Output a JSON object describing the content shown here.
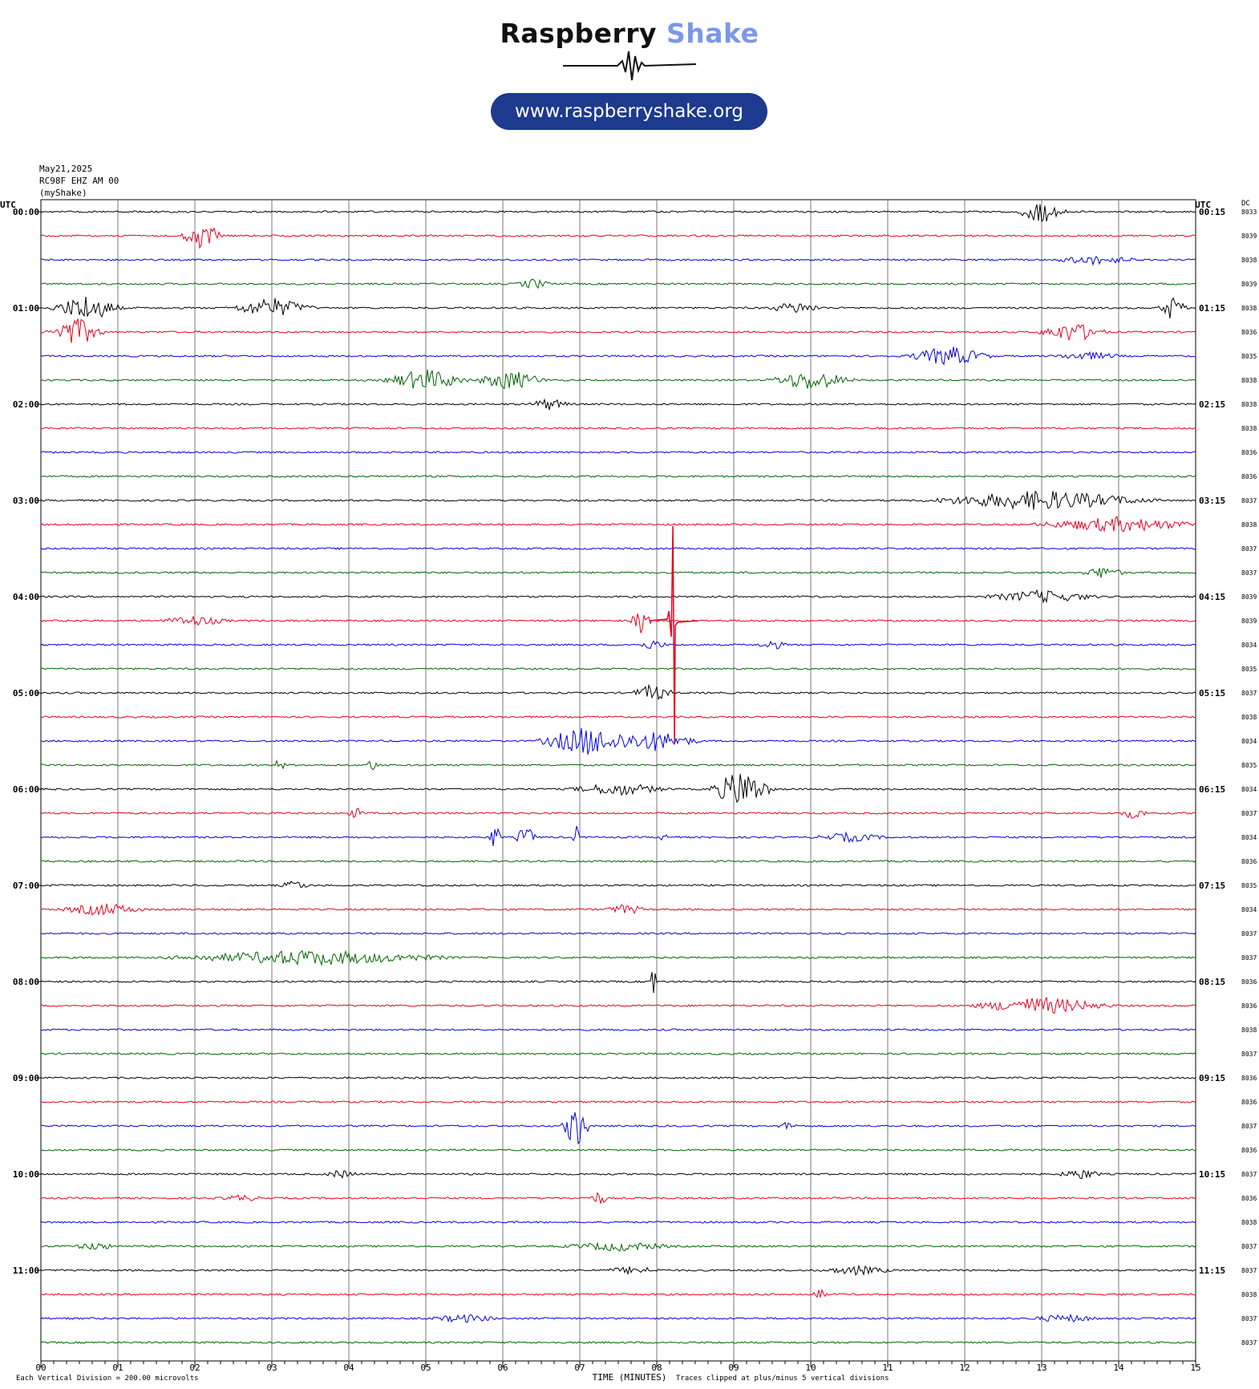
{
  "branding": {
    "name_part1": "Raspberry",
    "name_part2": "Shake",
    "url": "www.raspberryshake.org",
    "accent_blue": "#7b97e8",
    "pill_color": "#1d3a8f"
  },
  "header": {
    "date": "May21,2025",
    "station": "RC98F EHZ AM 00",
    "source": "(myShake)"
  },
  "axis": {
    "left_title": "UTC",
    "right_title": "UTC",
    "dc_title": "DC",
    "xlabel": "TIME (MINUTES)",
    "x_ticks": [
      "00",
      "01",
      "02",
      "03",
      "04",
      "05",
      "06",
      "07",
      "08",
      "09",
      "10",
      "11",
      "12",
      "13",
      "14",
      "15"
    ],
    "scale_note": "Each Vertical Division =  200.00 microvolts",
    "clip_note": "Traces clipped at plus/minus 5 vertical divisions"
  },
  "chart_data": {
    "type": "line",
    "title": "",
    "xlabel": "TIME (MINUTES)",
    "ylabel": "",
    "xlim": [
      0,
      15
    ],
    "trace_minutes": 15,
    "colors": [
      "#000000",
      "#e8001c",
      "#0000e0",
      "#006400"
    ],
    "left_hour_labels": [
      "00:00",
      "01:00",
      "02:00",
      "03:00",
      "04:00",
      "05:00",
      "06:00",
      "07:00",
      "08:00",
      "09:00",
      "10:00",
      "11:00"
    ],
    "right_hour_labels": [
      "00:15",
      "01:15",
      "02:15",
      "03:15",
      "04:15",
      "05:15",
      "06:15",
      "07:15",
      "08:15",
      "09:15",
      "10:15",
      "11:15"
    ],
    "dc_offsets": [
      "8033",
      "8039",
      "8038",
      "8039",
      "8038",
      "8036",
      "8035",
      "8038",
      "8038",
      "8038",
      "8036",
      "8036",
      "8037",
      "8038",
      "8037",
      "8037",
      "8039",
      "8039",
      "8034",
      "8035",
      "8037",
      "8038",
      "8034",
      "8035",
      "8034",
      "8037",
      "8034",
      "8036",
      "8035",
      "8034",
      "8037",
      "8037",
      "8036",
      "8036",
      "8038",
      "8037",
      "8036",
      "8036",
      "8037",
      "8036",
      "8037",
      "8036",
      "8038",
      "8037",
      "8037",
      "8038",
      "8037",
      "8037"
    ],
    "events": [
      {
        "trace": 0,
        "minute": 13.0,
        "amp": 0.9,
        "dur": 0.35
      },
      {
        "trace": 1,
        "minute": 2.1,
        "amp": 1.1,
        "dur": 0.3
      },
      {
        "trace": 2,
        "minute": 13.7,
        "amp": 0.35,
        "dur": 0.6
      },
      {
        "trace": 3,
        "minute": 6.4,
        "amp": 0.4,
        "dur": 0.25
      },
      {
        "trace": 4,
        "minute": 0.6,
        "amp": 1.1,
        "dur": 0.5
      },
      {
        "trace": 4,
        "minute": 3.0,
        "amp": 0.8,
        "dur": 0.6
      },
      {
        "trace": 4,
        "minute": 9.8,
        "amp": 0.45,
        "dur": 0.4
      },
      {
        "trace": 4,
        "minute": 14.7,
        "amp": 1.0,
        "dur": 0.2
      },
      {
        "trace": 5,
        "minute": 0.45,
        "amp": 1.2,
        "dur": 0.4
      },
      {
        "trace": 5,
        "minute": 13.4,
        "amp": 0.8,
        "dur": 0.5
      },
      {
        "trace": 6,
        "minute": 11.8,
        "amp": 0.8,
        "dur": 0.6
      },
      {
        "trace": 6,
        "minute": 13.6,
        "amp": 0.3,
        "dur": 0.5
      },
      {
        "trace": 7,
        "minute": 5.0,
        "amp": 0.9,
        "dur": 0.6
      },
      {
        "trace": 7,
        "minute": 6.1,
        "amp": 0.8,
        "dur": 0.5
      },
      {
        "trace": 7,
        "minute": 10.0,
        "amp": 0.8,
        "dur": 0.6
      },
      {
        "trace": 8,
        "minute": 6.6,
        "amp": 0.45,
        "dur": 0.3
      },
      {
        "trace": 12,
        "minute": 13.0,
        "amp": 0.8,
        "dur": 1.6
      },
      {
        "trace": 13,
        "minute": 14.0,
        "amp": 0.6,
        "dur": 1.2
      },
      {
        "trace": 15,
        "minute": 13.8,
        "amp": 0.5,
        "dur": 0.3
      },
      {
        "trace": 16,
        "minute": 13.0,
        "amp": 0.5,
        "dur": 0.8
      },
      {
        "trace": 17,
        "minute": 2.0,
        "amp": 0.4,
        "dur": 0.5
      },
      {
        "trace": 17,
        "minute": 7.8,
        "amp": 1.2,
        "dur": 0.15
      },
      {
        "trace": 18,
        "minute": 7.95,
        "amp": 0.4,
        "dur": 0.2
      },
      {
        "trace": 18,
        "minute": 9.5,
        "amp": 0.4,
        "dur": 0.2
      },
      {
        "trace": 20,
        "minute": 7.95,
        "amp": 0.7,
        "dur": 0.3
      },
      {
        "trace": 22,
        "minute": 7.1,
        "amp": 1.2,
        "dur": 0.7
      },
      {
        "trace": 22,
        "minute": 8.0,
        "amp": 0.8,
        "dur": 0.6
      },
      {
        "trace": 23,
        "minute": 3.1,
        "amp": 0.6,
        "dur": 0.08
      },
      {
        "trace": 23,
        "minute": 4.3,
        "amp": 0.6,
        "dur": 0.08
      },
      {
        "trace": 24,
        "minute": 7.5,
        "amp": 0.5,
        "dur": 0.7
      },
      {
        "trace": 24,
        "minute": 9.1,
        "amp": 1.6,
        "dur": 0.45
      },
      {
        "trace": 25,
        "minute": 4.1,
        "amp": 0.4,
        "dur": 0.15
      },
      {
        "trace": 25,
        "minute": 14.2,
        "amp": 0.45,
        "dur": 0.2
      },
      {
        "trace": 26,
        "minute": 5.9,
        "amp": 1.3,
        "dur": 0.08
      },
      {
        "trace": 26,
        "minute": 6.3,
        "amp": 1.0,
        "dur": 0.15
      },
      {
        "trace": 26,
        "minute": 6.95,
        "amp": 1.1,
        "dur": 0.05
      },
      {
        "trace": 26,
        "minute": 8.1,
        "amp": 1.1,
        "dur": 0.05
      },
      {
        "trace": 26,
        "minute": 10.5,
        "amp": 0.35,
        "dur": 0.5
      },
      {
        "trace": 28,
        "minute": 3.3,
        "amp": 0.4,
        "dur": 0.2
      },
      {
        "trace": 29,
        "minute": 0.8,
        "amp": 0.5,
        "dur": 0.6
      },
      {
        "trace": 29,
        "minute": 7.6,
        "amp": 0.4,
        "dur": 0.3
      },
      {
        "trace": 31,
        "minute": 3.5,
        "amp": 0.6,
        "dur": 2.0
      },
      {
        "trace": 32,
        "minute": 7.95,
        "amp": 1.8,
        "dur": 0.06
      },
      {
        "trace": 33,
        "minute": 13.0,
        "amp": 0.7,
        "dur": 1.0
      },
      {
        "trace": 38,
        "minute": 6.95,
        "amp": 1.9,
        "dur": 0.2
      },
      {
        "trace": 38,
        "minute": 9.7,
        "amp": 0.3,
        "dur": 0.15
      },
      {
        "trace": 40,
        "minute": 3.9,
        "amp": 0.3,
        "dur": 0.25
      },
      {
        "trace": 40,
        "minute": 13.5,
        "amp": 0.4,
        "dur": 0.3
      },
      {
        "trace": 41,
        "minute": 7.25,
        "amp": 0.6,
        "dur": 0.12
      },
      {
        "trace": 41,
        "minute": 2.6,
        "amp": 0.25,
        "dur": 0.3
      },
      {
        "trace": 43,
        "minute": 7.5,
        "amp": 0.35,
        "dur": 0.8
      },
      {
        "trace": 43,
        "minute": 0.7,
        "amp": 0.3,
        "dur": 0.3
      },
      {
        "trace": 44,
        "minute": 10.6,
        "amp": 0.35,
        "dur": 0.5
      },
      {
        "trace": 44,
        "minute": 7.7,
        "amp": 0.3,
        "dur": 0.4
      },
      {
        "trace": 45,
        "minute": 10.1,
        "amp": 0.5,
        "dur": 0.12
      },
      {
        "trace": 46,
        "minute": 5.5,
        "amp": 0.3,
        "dur": 0.5
      },
      {
        "trace": 46,
        "minute": 13.3,
        "amp": 0.3,
        "dur": 0.5
      }
    ],
    "clipped_spike": {
      "trace": 17,
      "minute": 8.22,
      "note": "large clipped signal spanning traces 13 to 22"
    }
  }
}
